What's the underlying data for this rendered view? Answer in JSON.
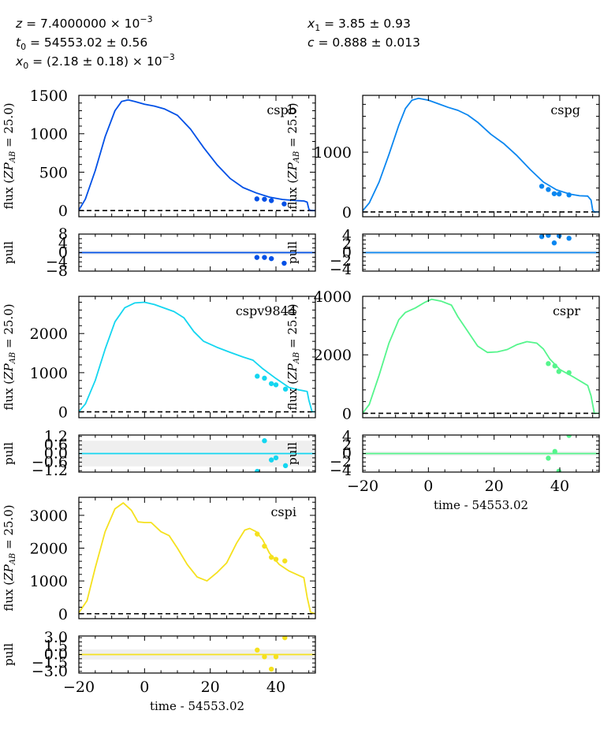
{
  "params": {
    "left": [
      {
        "sym": "z",
        "val": " = 7.4000000 × 10",
        "sup": "−3"
      },
      {
        "sym": "t",
        "sub": "0",
        "val": " = 54553.02 ± 0.56"
      },
      {
        "sym": "x",
        "sub": "0",
        "val": " = (2.18 ± 0.18) × 10",
        "sup": "−3"
      }
    ],
    "right": [
      {
        "sym": "x",
        "sub": "1",
        "val": " = 3.85 ± 0.93"
      },
      {
        "sym": "c",
        "val": " = 0.888 ± 0.013"
      }
    ]
  },
  "labels": {
    "flux_prefix": "flux (",
    "flux_zp": "ZP",
    "flux_ab": "AB",
    "flux_suffix": " = 25.0)",
    "pull": "pull",
    "time": "time - 54553.02"
  },
  "chart_data": [
    {
      "type": "line",
      "band": "cspb",
      "color": "#0050e6",
      "xlim": [
        -20,
        52
      ],
      "xticks": [
        -20,
        0,
        20,
        40
      ],
      "ylim": [
        -80,
        1500
      ],
      "yticks": [
        0,
        500,
        1000,
        1500
      ],
      "model": [
        [
          -20,
          5
        ],
        [
          -18,
          150
        ],
        [
          -15,
          520
        ],
        [
          -12,
          960
        ],
        [
          -9,
          1300
        ],
        [
          -7,
          1420
        ],
        [
          -5,
          1440
        ],
        [
          -3,
          1420
        ],
        [
          0,
          1385
        ],
        [
          3,
          1360
        ],
        [
          6,
          1325
        ],
        [
          10,
          1240
        ],
        [
          14,
          1060
        ],
        [
          18,
          820
        ],
        [
          22,
          600
        ],
        [
          26,
          420
        ],
        [
          30,
          300
        ],
        [
          34,
          230
        ],
        [
          38,
          175
        ],
        [
          42,
          145
        ],
        [
          46,
          130
        ],
        [
          48.5,
          125
        ],
        [
          49.5,
          110
        ],
        [
          50,
          20
        ],
        [
          50.5,
          0
        ],
        [
          52,
          0
        ]
      ],
      "points": [
        [
          34.2,
          152
        ],
        [
          36.5,
          148
        ],
        [
          38.6,
          130
        ],
        [
          42.5,
          87
        ]
      ],
      "pull_ylim": [
        -8,
        8
      ],
      "pull_yticks": [
        -8,
        -4,
        0,
        4,
        8
      ],
      "pull_band": 1,
      "pulls": [
        [
          34.2,
          -2.1
        ],
        [
          36.5,
          -2.1
        ],
        [
          38.6,
          -2.6
        ],
        [
          42.5,
          -4.6
        ]
      ],
      "show_xticklabels": false,
      "show_xlabel": false
    },
    {
      "type": "line",
      "band": "cspg",
      "color": "#0a86f0",
      "xlim": [
        -20,
        52
      ],
      "xticks": [
        -20,
        0,
        20,
        40
      ],
      "ylim": [
        -80,
        1950
      ],
      "yticks": [
        0,
        1000
      ],
      "model": [
        [
          -20,
          20
        ],
        [
          -18,
          150
        ],
        [
          -15,
          500
        ],
        [
          -12,
          960
        ],
        [
          -9,
          1450
        ],
        [
          -7,
          1730
        ],
        [
          -5,
          1870
        ],
        [
          -3,
          1900
        ],
        [
          0,
          1870
        ],
        [
          3,
          1810
        ],
        [
          6,
          1750
        ],
        [
          9,
          1700
        ],
        [
          12,
          1620
        ],
        [
          15,
          1500
        ],
        [
          19,
          1300
        ],
        [
          23,
          1140
        ],
        [
          27,
          940
        ],
        [
          31,
          710
        ],
        [
          35,
          500
        ],
        [
          39,
          370
        ],
        [
          43,
          300
        ],
        [
          46,
          270
        ],
        [
          48.5,
          265
        ],
        [
          49.5,
          200
        ],
        [
          50,
          30
        ],
        [
          50.5,
          0
        ],
        [
          52,
          0
        ]
      ],
      "points": [
        [
          34.5,
          430
        ],
        [
          36.5,
          375
        ],
        [
          38.3,
          305
        ],
        [
          39.8,
          300
        ],
        [
          42.8,
          285
        ]
      ],
      "pull_ylim": [
        -4.4,
        4.4
      ],
      "pull_yticks": [
        -4,
        -2,
        0,
        2,
        4
      ],
      "pull_band": 0.5,
      "pulls": [
        [
          34.5,
          3.8
        ],
        [
          36.5,
          4.1
        ],
        [
          38.3,
          2.3
        ],
        [
          39.8,
          4.0
        ],
        [
          42.8,
          3.4
        ]
      ],
      "show_xticklabels": false,
      "show_xlabel": false
    },
    {
      "type": "line",
      "band": "cspv9844",
      "color": "#14d6f0",
      "xlim": [
        -20,
        52
      ],
      "xticks": [
        -20,
        0,
        20,
        40
      ],
      "ylim": [
        -150,
        2950
      ],
      "yticks": [
        0,
        1000,
        2000
      ],
      "model": [
        [
          -20,
          5
        ],
        [
          -18,
          200
        ],
        [
          -15,
          800
        ],
        [
          -12,
          1600
        ],
        [
          -9,
          2300
        ],
        [
          -6,
          2660
        ],
        [
          -3,
          2780
        ],
        [
          0,
          2800
        ],
        [
          3,
          2740
        ],
        [
          6,
          2650
        ],
        [
          9,
          2560
        ],
        [
          12,
          2400
        ],
        [
          15,
          2050
        ],
        [
          18,
          1800
        ],
        [
          22,
          1650
        ],
        [
          26,
          1520
        ],
        [
          30,
          1400
        ],
        [
          33,
          1320
        ],
        [
          36,
          1100
        ],
        [
          40,
          850
        ],
        [
          44,
          620
        ],
        [
          47,
          560
        ],
        [
          49.5,
          520
        ],
        [
          50,
          300
        ],
        [
          51,
          0
        ],
        [
          52,
          0
        ]
      ],
      "points": [
        [
          34.3,
          910
        ],
        [
          36.5,
          860
        ],
        [
          38.6,
          720
        ],
        [
          40,
          690
        ],
        [
          42.9,
          580
        ]
      ],
      "pull_ylim": [
        -1.3,
        1.3
      ],
      "pull_yticks": [
        -1.2,
        -0.6,
        0.0,
        0.6,
        1.2
      ],
      "pull_labels": [
        "−1.2",
        "−0.6",
        "0.0",
        "0.6",
        "1.2"
      ],
      "pull_band": 0.9,
      "pulls": [
        [
          34.3,
          -1.25
        ],
        [
          36.5,
          0.9
        ],
        [
          38.6,
          -0.45
        ],
        [
          40,
          -0.3
        ],
        [
          42.9,
          -0.85
        ]
      ],
      "show_xticklabels": false,
      "show_xlabel": false
    },
    {
      "type": "line",
      "band": "cspr",
      "color": "#55f58c",
      "xlim": [
        -20,
        52
      ],
      "xticks": [
        -20,
        0,
        20,
        40
      ],
      "ylim": [
        -150,
        4000
      ],
      "yticks": [
        0,
        2000,
        4000
      ],
      "model": [
        [
          -20,
          5
        ],
        [
          -18,
          300
        ],
        [
          -15,
          1300
        ],
        [
          -12,
          2400
        ],
        [
          -9,
          3200
        ],
        [
          -7,
          3450
        ],
        [
          -4,
          3600
        ],
        [
          -1,
          3800
        ],
        [
          1,
          3900
        ],
        [
          4,
          3830
        ],
        [
          7,
          3700
        ],
        [
          9,
          3300
        ],
        [
          12,
          2800
        ],
        [
          15,
          2300
        ],
        [
          18,
          2080
        ],
        [
          21,
          2100
        ],
        [
          24,
          2180
        ],
        [
          27,
          2350
        ],
        [
          30,
          2450
        ],
        [
          33,
          2400
        ],
        [
          35,
          2200
        ],
        [
          37,
          1850
        ],
        [
          40,
          1500
        ],
        [
          44,
          1250
        ],
        [
          48.5,
          950
        ],
        [
          49.5,
          600
        ],
        [
          50.5,
          0
        ],
        [
          52,
          0
        ]
      ],
      "points": [
        [
          36.5,
          1700
        ],
        [
          38.5,
          1620
        ],
        [
          39.7,
          1430
        ],
        [
          42.8,
          1390
        ]
      ],
      "pull_ylim": [
        -4.4,
        4.4
      ],
      "pull_yticks": [
        -4,
        -2,
        0,
        2,
        4
      ],
      "pull_band": 0.5,
      "pulls": [
        [
          36.5,
          -1.1
        ],
        [
          38.5,
          0.5
        ],
        [
          39.7,
          -4.2
        ],
        [
          42.8,
          4.3
        ]
      ],
      "show_xticklabels": true,
      "show_xlabel": true
    },
    {
      "type": "line",
      "band": "cspi",
      "color": "#f5e11e",
      "xlim": [
        -20,
        52
      ],
      "xticks": [
        -20,
        0,
        20,
        40
      ],
      "ylim": [
        -150,
        3550
      ],
      "yticks": [
        0,
        1000,
        2000,
        3000
      ],
      "model": [
        [
          -20,
          30
        ],
        [
          -17.5,
          400
        ],
        [
          -15,
          1400
        ],
        [
          -12,
          2500
        ],
        [
          -9,
          3200
        ],
        [
          -6.5,
          3380
        ],
        [
          -4,
          3150
        ],
        [
          -2,
          2800
        ],
        [
          0,
          2780
        ],
        [
          2,
          2780
        ],
        [
          5,
          2500
        ],
        [
          7.5,
          2380
        ],
        [
          10,
          2000
        ],
        [
          13,
          1500
        ],
        [
          16,
          1120
        ],
        [
          19,
          1000
        ],
        [
          22,
          1250
        ],
        [
          25,
          1550
        ],
        [
          28,
          2150
        ],
        [
          30.5,
          2550
        ],
        [
          32,
          2600
        ],
        [
          34,
          2500
        ],
        [
          36,
          2250
        ],
        [
          38,
          1850
        ],
        [
          41,
          1500
        ],
        [
          44,
          1300
        ],
        [
          48.5,
          1100
        ],
        [
          49.5,
          500
        ],
        [
          50.5,
          50
        ],
        [
          52,
          0
        ]
      ],
      "points": [
        [
          34.3,
          2430
        ],
        [
          36.5,
          2060
        ],
        [
          38.6,
          1720
        ],
        [
          40,
          1660
        ],
        [
          42.7,
          1610
        ]
      ],
      "pull_ylim": [
        -3.3,
        3.3
      ],
      "pull_yticks": [
        -3.0,
        -1.5,
        0.0,
        1.5,
        3.0
      ],
      "pull_labels": [
        "−3.0",
        "−1.5",
        "0.0",
        "1.5",
        "3.0"
      ],
      "pull_band": 0.9,
      "pulls": [
        [
          34.3,
          0.8
        ],
        [
          36.5,
          -0.4
        ],
        [
          38.6,
          -2.6
        ],
        [
          40,
          -0.4
        ],
        [
          42.7,
          3.0
        ]
      ],
      "show_xticklabels": true,
      "show_xlabel": true
    }
  ]
}
